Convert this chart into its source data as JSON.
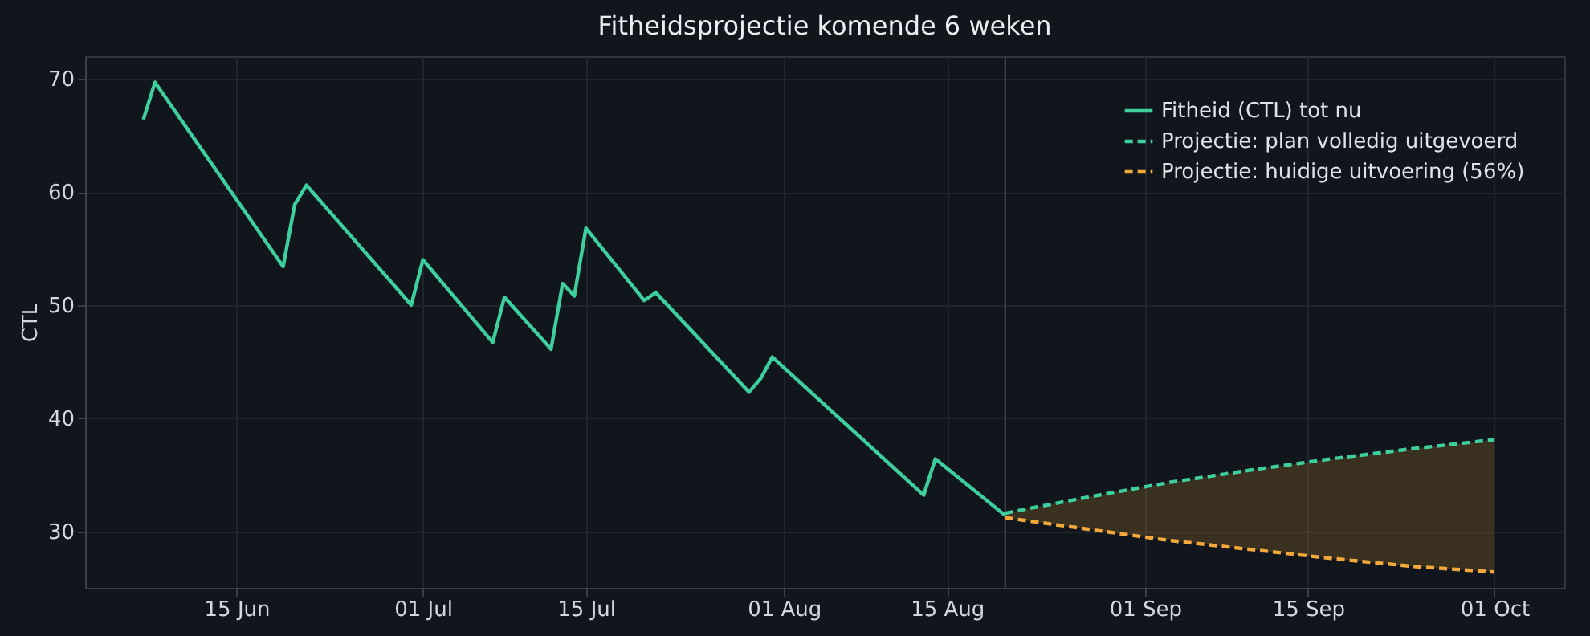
{
  "chart_data": {
    "type": "line",
    "title": "Fitheidsprojectie komende 6 weken",
    "ylabel": "CTL",
    "xlim": [
      "--06-02",
      "--10-07"
    ],
    "ylim": [
      25,
      72
    ],
    "yticks": [
      30,
      40,
      50,
      60,
      70
    ],
    "xticks": [
      {
        "value": "--06-15",
        "label": "15 Jun"
      },
      {
        "value": "--07-01",
        "label": "01 Jul"
      },
      {
        "value": "--07-15",
        "label": "15 Jul"
      },
      {
        "value": "--08-01",
        "label": "01 Aug"
      },
      {
        "value": "--08-15",
        "label": "15 Aug"
      },
      {
        "value": "--09-01",
        "label": "01 Sep"
      },
      {
        "value": "--09-15",
        "label": "15 Sep"
      },
      {
        "value": "--10-01",
        "label": "01 Oct"
      }
    ],
    "grid": true,
    "legend": "top right",
    "ref_lines": [
      {
        "axis": "x",
        "value": "--08-20",
        "color": "#3a4048"
      }
    ],
    "series": [
      {
        "name": "Fitheid (CTL) tot nu",
        "color": "#3ecf9e",
        "line_style": "solid",
        "x": [
          "--06-07",
          "--06-08",
          "--06-19",
          "--06-20",
          "--06-21",
          "--06-30",
          "--07-01",
          "--07-07",
          "--07-08",
          "--07-12",
          "--07-13",
          "--07-14",
          "--07-15",
          "--07-20",
          "--07-21",
          "--07-29",
          "--07-30",
          "--07-31",
          "--08-13",
          "--08-14",
          "--08-20"
        ],
        "values": [
          66.4,
          69.7,
          53.4,
          58.9,
          60.6,
          50.0,
          54.0,
          46.7,
          50.7,
          46.1,
          51.9,
          50.8,
          56.8,
          50.4,
          51.1,
          42.3,
          43.5,
          45.4,
          33.2,
          36.4,
          31.4
        ]
      },
      {
        "name": "Projectie: plan volledig uitgevoerd",
        "color": "#3ecf9e",
        "line_style": "dashed",
        "x": [
          "--08-20",
          "--08-27",
          "--09-03",
          "--09-10",
          "--09-17",
          "--09-24",
          "--10-01"
        ],
        "values": [
          31.6,
          33.0,
          34.3,
          35.4,
          36.4,
          37.3,
          38.1
        ]
      },
      {
        "name": "Projectie: huidige uitvoering (56%)",
        "color": "#f5a93a",
        "line_style": "dashed",
        "x": [
          "--08-20",
          "--08-27",
          "--09-03",
          "--09-10",
          "--09-17",
          "--09-24",
          "--10-01"
        ],
        "values": [
          31.2,
          30.2,
          29.2,
          28.4,
          27.6,
          26.9,
          26.4
        ],
        "lower": [
          31.2,
          30.2,
          29.2,
          28.4,
          27.6,
          26.9,
          26.4
        ],
        "upper": [
          31.6,
          33.0,
          34.3,
          35.4,
          36.4,
          37.3,
          38.1
        ]
      }
    ]
  }
}
